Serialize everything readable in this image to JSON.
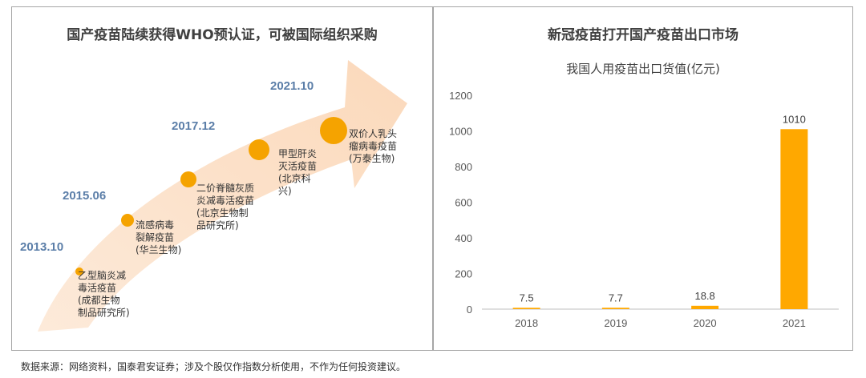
{
  "left_panel": {
    "title": "国产疫苗陆续获得WHO预认证，可被国际组织采购",
    "milestones": [
      {
        "year": "2013.10",
        "label_lines": [
          "乙型脑炎减",
          "毒活疫苗",
          "(成都生物",
          "制品研究所)"
        ]
      },
      {
        "year": "2015.06",
        "label_lines": [
          "流感病毒",
          "裂解疫苗",
          "(华兰生物)"
        ]
      },
      {
        "year": "2017.12",
        "label_lines": [
          "二价脊髓灰质",
          "炎减毒活疫苗",
          "(北京生物制",
          "品研究所)"
        ]
      },
      {
        "year": "",
        "label_lines": [
          "甲型肝炎",
          "灭活疫苗",
          "(北京科",
          "兴)"
        ]
      },
      {
        "year": "2021.10",
        "label_lines": [
          "双价人乳头",
          "瘤病毒疫苗",
          "(万泰生物)"
        ]
      }
    ],
    "colors": {
      "arrow": "#fbd9bb",
      "dot": "#f5a300",
      "year": "#5b7ea8"
    }
  },
  "right_panel": {
    "title": "新冠疫苗打开国产疫苗出口市场"
  },
  "chart_data": {
    "type": "bar",
    "title": "我国人用疫苗出口货值(亿元)",
    "categories": [
      "2018",
      "2019",
      "2020",
      "2021"
    ],
    "values": [
      7.5,
      7.7,
      18.8,
      1010
    ],
    "value_labels": [
      "7.5",
      "7.7",
      "18.8",
      "1010"
    ],
    "ylim": [
      0,
      1200
    ],
    "yticks": [
      0,
      200,
      400,
      600,
      800,
      1000,
      1200
    ],
    "bar_color": "#ffa800",
    "xlabel": "",
    "ylabel": ""
  },
  "footer": {
    "source": "数据来源：网络资料，国泰君安证券；涉及个股仅作指数分析使用，不作为任何投资建议。"
  }
}
